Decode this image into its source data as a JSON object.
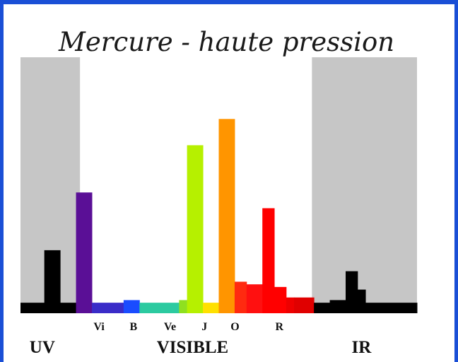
{
  "chart_data": {
    "type": "bar",
    "title": "Mercure - haute pression",
    "regions": [
      {
        "name": "UV",
        "label": "UV",
        "shaded": true,
        "shade_color": "#c6c6c6"
      },
      {
        "name": "VISIBLE",
        "label": "VISIBLE",
        "shaded": false,
        "shade_color": "#ffffff"
      },
      {
        "name": "IR",
        "label": "IR",
        "shaded": true,
        "shade_color": "#c6c6c6"
      }
    ],
    "color_ticks": [
      "Vi",
      "B",
      "Ve",
      "J",
      "O",
      "R"
    ],
    "spectrum": {
      "baseline": 2,
      "segments": [
        {
          "from": 0.0,
          "to": 0.06,
          "value": 2,
          "color": "#000000"
        },
        {
          "from": 0.06,
          "to": 0.1,
          "value": 12,
          "color": "#000000"
        },
        {
          "from": 0.1,
          "to": 0.14,
          "value": 2,
          "color": "#000000"
        },
        {
          "from": 0.14,
          "to": 0.18,
          "value": 23,
          "color": "#5a0f96"
        },
        {
          "from": 0.18,
          "to": 0.26,
          "value": 2,
          "color": "#3a2cc8"
        },
        {
          "from": 0.26,
          "to": 0.3,
          "value": 2.5,
          "color": "#1a4cff"
        },
        {
          "from": 0.3,
          "to": 0.4,
          "value": 2,
          "color": "#2ccaa0"
        },
        {
          "from": 0.4,
          "to": 0.42,
          "value": 2.5,
          "color": "#8fe020"
        },
        {
          "from": 0.42,
          "to": 0.46,
          "value": 32,
          "color": "#b6f000"
        },
        {
          "from": 0.46,
          "to": 0.5,
          "value": 2,
          "color": "#ffe000"
        },
        {
          "from": 0.5,
          "to": 0.54,
          "value": 37,
          "color": "#ff9500"
        },
        {
          "from": 0.54,
          "to": 0.57,
          "value": 6,
          "color": "#ff2a10"
        },
        {
          "from": 0.57,
          "to": 0.61,
          "value": 5.5,
          "color": "#ff1010"
        },
        {
          "from": 0.61,
          "to": 0.64,
          "value": 20,
          "color": "#ff0000"
        },
        {
          "from": 0.64,
          "to": 0.67,
          "value": 5,
          "color": "#ff0000"
        },
        {
          "from": 0.67,
          "to": 0.69,
          "value": 3,
          "color": "#ee0000"
        },
        {
          "from": 0.69,
          "to": 0.74,
          "value": 3,
          "color": "#e00000"
        },
        {
          "from": 0.74,
          "to": 0.78,
          "value": 2,
          "color": "#000000"
        },
        {
          "from": 0.78,
          "to": 0.82,
          "value": 2.5,
          "color": "#000000"
        },
        {
          "from": 0.82,
          "to": 0.85,
          "value": 8,
          "color": "#000000"
        },
        {
          "from": 0.85,
          "to": 0.87,
          "value": 4.5,
          "color": "#000000"
        },
        {
          "from": 0.87,
          "to": 1.0,
          "value": 2,
          "color": "#000000"
        }
      ]
    },
    "ylim": [
      0,
      40
    ],
    "xlabel": "",
    "ylabel": "",
    "grid": false
  }
}
